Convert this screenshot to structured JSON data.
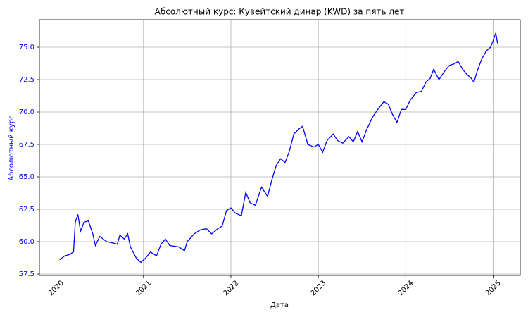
{
  "chart_data": {
    "type": "line",
    "title": "Абсолютный курс: Кувейтский динар (KWD) за пять лет",
    "xlabel": "Дата",
    "ylabel": "Абсолютный курс",
    "color": "#0000ff",
    "grid": true,
    "xlim": [
      2019.81,
      2025.31
    ],
    "xticks": [
      2020,
      2021,
      2022,
      2023,
      2024,
      2025
    ],
    "ylim": [
      57.39,
      77.12
    ],
    "yticks": [
      57.5,
      {
        "value": 60,
        "label": "60.0"
      },
      62.5,
      {
        "value": 65,
        "label": "65.0"
      },
      67.5,
      {
        "value": 70,
        "label": "70.0"
      },
      72.5,
      {
        "value": 75,
        "label": "75.0"
      }
    ],
    "x": [
      2020.04,
      2020.1,
      2020.15,
      2020.2,
      2020.22,
      2020.25,
      2020.28,
      2020.32,
      2020.37,
      2020.42,
      2020.45,
      2020.5,
      2020.58,
      2020.65,
      2020.7,
      2020.73,
      2020.78,
      2020.82,
      2020.85,
      2020.92,
      2020.97,
      2021.02,
      2021.08,
      2021.15,
      2021.2,
      2021.25,
      2021.3,
      2021.4,
      2021.47,
      2021.5,
      2021.58,
      2021.65,
      2021.72,
      2021.78,
      2021.85,
      2021.9,
      2021.95,
      2022.0,
      2022.05,
      2022.12,
      2022.17,
      2022.22,
      2022.28,
      2022.35,
      2022.42,
      2022.47,
      2022.52,
      2022.57,
      2022.62,
      2022.67,
      2022.72,
      2022.78,
      2022.82,
      2022.88,
      2022.95,
      2023.0,
      2023.05,
      2023.1,
      2023.17,
      2023.22,
      2023.28,
      2023.35,
      2023.4,
      2023.45,
      2023.5,
      2023.55,
      2023.62,
      2023.68,
      2023.75,
      2023.8,
      2023.85,
      2023.9,
      2023.95,
      2024.0,
      2024.05,
      2024.12,
      2024.18,
      2024.23,
      2024.28,
      2024.32,
      2024.38,
      2024.45,
      2024.5,
      2024.55,
      2024.6,
      2024.65,
      2024.7,
      2024.75,
      2024.78,
      2024.82,
      2024.87,
      2024.92,
      2024.97,
      2025.0,
      2025.03,
      2025.05
    ],
    "values": [
      58.6,
      58.9,
      59.0,
      59.2,
      61.5,
      62.1,
      60.8,
      61.5,
      61.6,
      60.6,
      59.7,
      60.4,
      60.0,
      59.9,
      59.8,
      60.5,
      60.2,
      60.6,
      59.6,
      58.7,
      58.4,
      58.7,
      59.2,
      58.9,
      59.8,
      60.2,
      59.7,
      59.6,
      59.3,
      60.0,
      60.6,
      60.9,
      61.0,
      60.6,
      61.0,
      61.2,
      62.4,
      62.6,
      62.2,
      62.0,
      63.8,
      63.0,
      62.8,
      64.2,
      63.5,
      64.8,
      65.9,
      66.4,
      66.1,
      67.0,
      68.3,
      68.7,
      68.9,
      67.5,
      67.3,
      67.5,
      66.9,
      67.8,
      68.3,
      67.8,
      67.6,
      68.1,
      67.7,
      68.5,
      67.7,
      68.6,
      69.6,
      70.2,
      70.8,
      70.6,
      69.8,
      69.2,
      70.2,
      70.2,
      70.9,
      71.5,
      71.6,
      72.3,
      72.6,
      73.3,
      72.5,
      73.2,
      73.6,
      73.7,
      73.9,
      73.3,
      72.9,
      72.6,
      72.3,
      73.2,
      74.1,
      74.7,
      75.0,
      75.5,
      76.1,
      75.3
    ]
  }
}
